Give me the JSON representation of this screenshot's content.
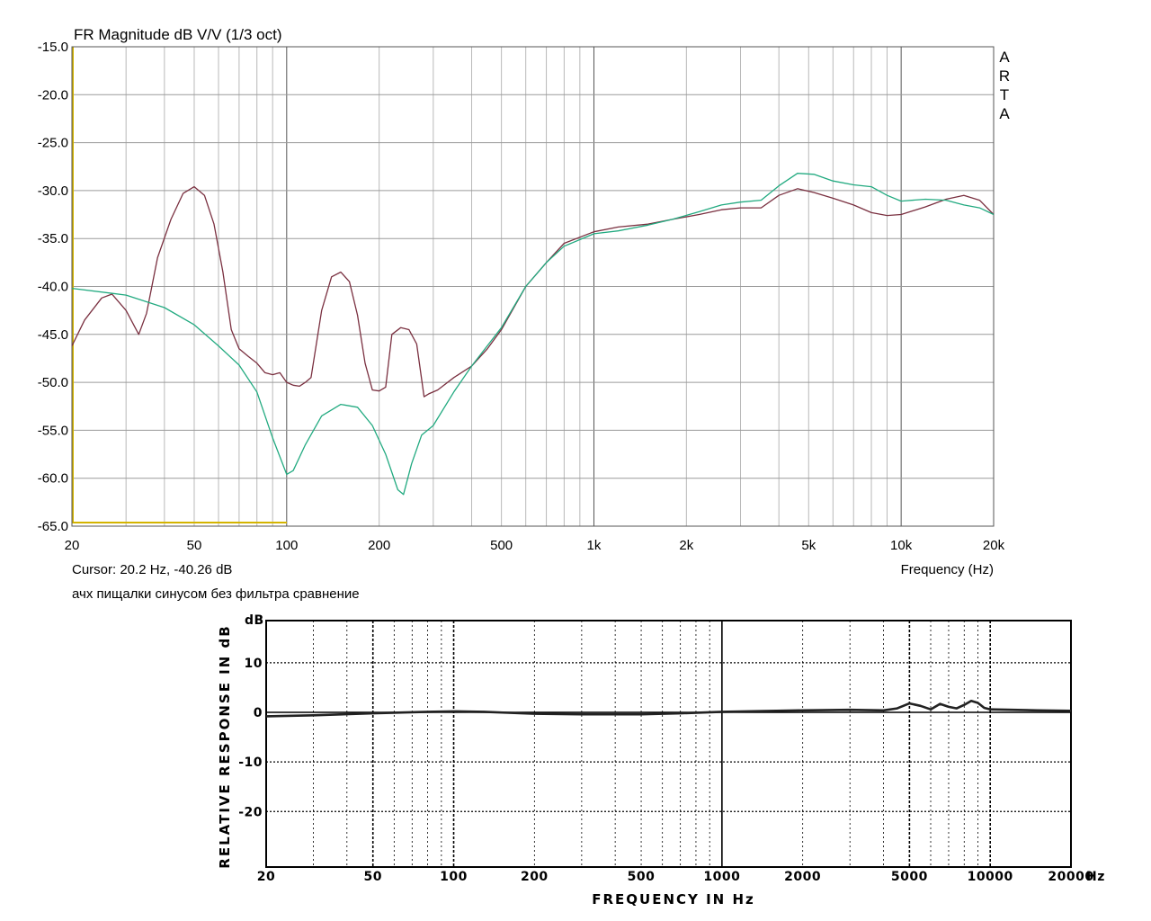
{
  "chart_data": [
    {
      "type": "line",
      "title": "FR Magnitude dB V/V (1/3 oct)",
      "xlabel": "Frequency (Hz)",
      "x_scale": "log",
      "xlim": [
        20,
        20000
      ],
      "ylim": [
        -65,
        -15
      ],
      "grid": true,
      "x_ticks": [
        "20",
        "50",
        "100",
        "200",
        "500",
        "1k",
        "2k",
        "5k",
        "10k",
        "20k"
      ],
      "y_ticks": [
        "-15.0",
        "-20.0",
        "-25.0",
        "-30.0",
        "-35.0",
        "-40.0",
        "-45.0",
        "-50.0",
        "-55.0",
        "-60.0",
        "-65.0"
      ],
      "side_logo": [
        "A",
        "R",
        "T",
        "A"
      ],
      "cursor_text": "Cursor: 20.2 Hz, -40.26 dB",
      "caption": "ачх пищалки  синусом без фильтра сравнение",
      "series": [
        {
          "color": "#7a3040",
          "points": [
            [
              20,
              -46.2
            ],
            [
              22,
              -43.5
            ],
            [
              25,
              -41.2
            ],
            [
              27,
              -40.8
            ],
            [
              30,
              -42.5
            ],
            [
              33,
              -45
            ],
            [
              35,
              -42.8
            ],
            [
              38,
              -37
            ],
            [
              42,
              -33
            ],
            [
              46,
              -30.3
            ],
            [
              50,
              -29.6
            ],
            [
              54,
              -30.5
            ],
            [
              58,
              -33.5
            ],
            [
              62,
              -38.5
            ],
            [
              66,
              -44.5
            ],
            [
              70,
              -46.5
            ],
            [
              75,
              -47.3
            ],
            [
              80,
              -48
            ],
            [
              85,
              -49
            ],
            [
              90,
              -49.2
            ],
            [
              95,
              -49
            ],
            [
              100,
              -50
            ],
            [
              105,
              -50.3
            ],
            [
              110,
              -50.4
            ],
            [
              115,
              -50
            ],
            [
              120,
              -49.5
            ],
            [
              130,
              -42.5
            ],
            [
              140,
              -39
            ],
            [
              150,
              -38.5
            ],
            [
              160,
              -39.5
            ],
            [
              170,
              -43
            ],
            [
              180,
              -48
            ],
            [
              190,
              -50.8
            ],
            [
              200,
              -50.9
            ],
            [
              210,
              -50.5
            ],
            [
              220,
              -45
            ],
            [
              235,
              -44.3
            ],
            [
              250,
              -44.5
            ],
            [
              265,
              -46
            ],
            [
              280,
              -51.5
            ],
            [
              290,
              -51.2
            ],
            [
              310,
              -50.8
            ],
            [
              350,
              -49.5
            ],
            [
              400,
              -48.3
            ],
            [
              450,
              -46.5
            ],
            [
              500,
              -44.5
            ],
            [
              600,
              -40
            ],
            [
              700,
              -37.5
            ],
            [
              800,
              -35.5
            ],
            [
              1000,
              -34.3
            ],
            [
              1200,
              -33.8
            ],
            [
              1500,
              -33.5
            ],
            [
              1800,
              -33
            ],
            [
              2200,
              -32.5
            ],
            [
              2600,
              -32
            ],
            [
              3000,
              -31.8
            ],
            [
              3500,
              -31.8
            ],
            [
              4000,
              -30.5
            ],
            [
              4600,
              -29.8
            ],
            [
              5200,
              -30.2
            ],
            [
              6000,
              -30.8
            ],
            [
              7000,
              -31.5
            ],
            [
              8000,
              -32.3
            ],
            [
              9000,
              -32.6
            ],
            [
              10000,
              -32.5
            ],
            [
              12000,
              -31.7
            ],
            [
              14000,
              -30.9
            ],
            [
              16000,
              -30.5
            ],
            [
              18000,
              -31
            ],
            [
              20000,
              -32.5
            ]
          ]
        },
        {
          "color": "#22aa80",
          "points": [
            [
              20,
              -40.2
            ],
            [
              30,
              -40.9
            ],
            [
              40,
              -42.2
            ],
            [
              50,
              -44
            ],
            [
              60,
              -46.2
            ],
            [
              70,
              -48.2
            ],
            [
              80,
              -51
            ],
            [
              90,
              -55.8
            ],
            [
              100,
              -59.6
            ],
            [
              105,
              -59.2
            ],
            [
              115,
              -56.5
            ],
            [
              130,
              -53.5
            ],
            [
              150,
              -52.3
            ],
            [
              170,
              -52.6
            ],
            [
              190,
              -54.5
            ],
            [
              210,
              -57.5
            ],
            [
              230,
              -61.2
            ],
            [
              240,
              -61.7
            ],
            [
              255,
              -58.5
            ],
            [
              275,
              -55.5
            ],
            [
              300,
              -54.5
            ],
            [
              350,
              -51
            ],
            [
              400,
              -48.3
            ],
            [
              500,
              -44.3
            ],
            [
              600,
              -40
            ],
            [
              700,
              -37.5
            ],
            [
              800,
              -35.8
            ],
            [
              1000,
              -34.5
            ],
            [
              1200,
              -34.2
            ],
            [
              1500,
              -33.6
            ],
            [
              1800,
              -33
            ],
            [
              2200,
              -32.2
            ],
            [
              2600,
              -31.5
            ],
            [
              3000,
              -31.2
            ],
            [
              3500,
              -31
            ],
            [
              4000,
              -29.5
            ],
            [
              4600,
              -28.2
            ],
            [
              5200,
              -28.3
            ],
            [
              6000,
              -29
            ],
            [
              7000,
              -29.4
            ],
            [
              8000,
              -29.6
            ],
            [
              9000,
              -30.5
            ],
            [
              10000,
              -31.1
            ],
            [
              12000,
              -30.9
            ],
            [
              14000,
              -31
            ],
            [
              16000,
              -31.5
            ],
            [
              18000,
              -31.8
            ],
            [
              20000,
              -32.5
            ]
          ]
        }
      ]
    },
    {
      "type": "line",
      "ylabel": "RELATIVE RESPONSE  IN  dB",
      "xlabel": "FREQUENCY  IN  Hz",
      "y_unit": "dB",
      "x_unit": "Hz",
      "x_scale": "log",
      "xlim": [
        20,
        20000
      ],
      "grid": true,
      "x_ticks": [
        "20",
        "50",
        "100",
        "200",
        "500",
        "1000",
        "2000",
        "5000",
        "10000",
        "20000"
      ],
      "y_ticks": [
        "10",
        "0",
        "-10",
        "-20"
      ],
      "series": [
        {
          "color": "#222222",
          "points": [
            [
              20,
              -0.8
            ],
            [
              30,
              -0.6
            ],
            [
              50,
              -0.2
            ],
            [
              80,
              0.1
            ],
            [
              100,
              0.2
            ],
            [
              130,
              0.1
            ],
            [
              160,
              -0.1
            ],
            [
              200,
              -0.3
            ],
            [
              300,
              -0.4
            ],
            [
              500,
              -0.4
            ],
            [
              700,
              -0.2
            ],
            [
              1000,
              0.1
            ],
            [
              2000,
              0.4
            ],
            [
              3000,
              0.5
            ],
            [
              4000,
              0.4
            ],
            [
              4500,
              0.8
            ],
            [
              5000,
              1.8
            ],
            [
              5500,
              1.3
            ],
            [
              6000,
              0.6
            ],
            [
              6500,
              1.7
            ],
            [
              7000,
              1.1
            ],
            [
              7500,
              0.8
            ],
            [
              8000,
              1.5
            ],
            [
              8500,
              2.3
            ],
            [
              9000,
              1.9
            ],
            [
              9500,
              0.9
            ],
            [
              10000,
              0.6
            ],
            [
              15000,
              0.4
            ],
            [
              20000,
              0.3
            ]
          ]
        }
      ]
    }
  ]
}
